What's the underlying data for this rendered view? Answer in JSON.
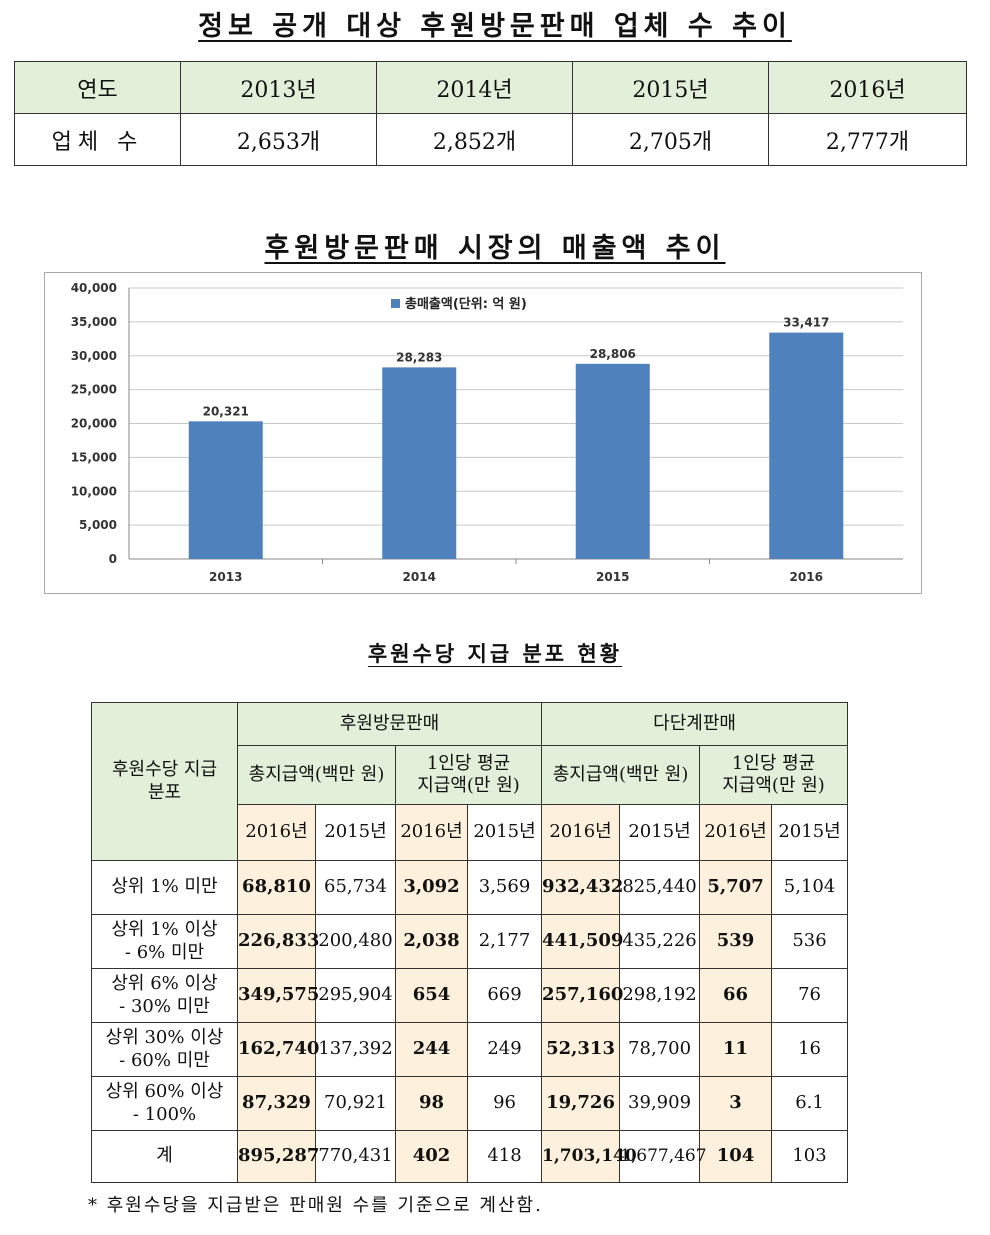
{
  "section1": {
    "title": "정보 공개 대상 후원방문판매 업체 수 추이",
    "table": {
      "header": [
        "연도",
        "2013년",
        "2014년",
        "2015년",
        "2016년"
      ],
      "row": [
        "업체 수",
        "2,653개",
        "2,852개",
        "2,705개",
        "2,777개"
      ]
    }
  },
  "section2": {
    "title": "후원방문판매 시장의 매출액 추이"
  },
  "chart_data": {
    "type": "bar",
    "categories": [
      "2013",
      "2014",
      "2015",
      "2016"
    ],
    "series": [
      {
        "name": "총매출액(단위: 억 원)",
        "values": [
          20321,
          28283,
          28806,
          33417
        ]
      }
    ],
    "data_labels": [
      "20,321",
      "28,283",
      "28,806",
      "33,417"
    ],
    "y_ticks": [
      "0",
      "5,000",
      "10,000",
      "15,000",
      "20,000",
      "25,000",
      "30,000",
      "35,000",
      "40,000"
    ],
    "ylim": [
      0,
      40000
    ],
    "grid": true,
    "legend_position": "top-center",
    "bar_color": "#4f81bd"
  },
  "section3": {
    "title": "후원수당 지급 분포 현황",
    "corner": "후원수당 지급 분포",
    "group_a": "후원방문판매",
    "group_b": "다단계판매",
    "sub_total": "총지급액(백만 원)",
    "sub_avg_line1": "1인당 평균",
    "sub_avg_line2": "지급액(만 원)",
    "year_2016": "2016년",
    "year_2015": "2015년",
    "rows": [
      {
        "label1": "상위 1% 미만",
        "label2": "",
        "v": [
          "68,810",
          "65,734",
          "3,092",
          "3,569",
          "932,432",
          "825,440",
          "5,707",
          "5,104"
        ]
      },
      {
        "label1": "상위 1% 이상",
        "label2": "- 6% 미만",
        "v": [
          "226,833",
          "200,480",
          "2,038",
          "2,177",
          "441,509",
          "435,226",
          "539",
          "536"
        ]
      },
      {
        "label1": "상위 6% 이상",
        "label2": "- 30% 미만",
        "v": [
          "349,575",
          "295,904",
          "654",
          "669",
          "257,160",
          "298,192",
          "66",
          "76"
        ]
      },
      {
        "label1": "상위 30% 이상",
        "label2": "- 60% 미만",
        "v": [
          "162,740",
          "137,392",
          "244",
          "249",
          "52,313",
          "78,700",
          "11",
          "16"
        ]
      },
      {
        "label1": "상위 60% 이상",
        "label2": "- 100%",
        "v": [
          "87,329",
          "70,921",
          "98",
          "96",
          "19,726",
          "39,909",
          "3",
          "6.1"
        ]
      },
      {
        "label1": "계",
        "label2": "",
        "v": [
          "895,287",
          "770,431",
          "402",
          "418",
          "1,703,140",
          "1,677,467",
          "104",
          "103"
        ]
      }
    ],
    "note": "* 후원수당을 지급받은 판매원 수를 기준으로 계산함."
  },
  "colors": {
    "header_bg": "#e2efd9",
    "highlight_bg": "#fdf0dc",
    "bar": "#4f81bd"
  }
}
